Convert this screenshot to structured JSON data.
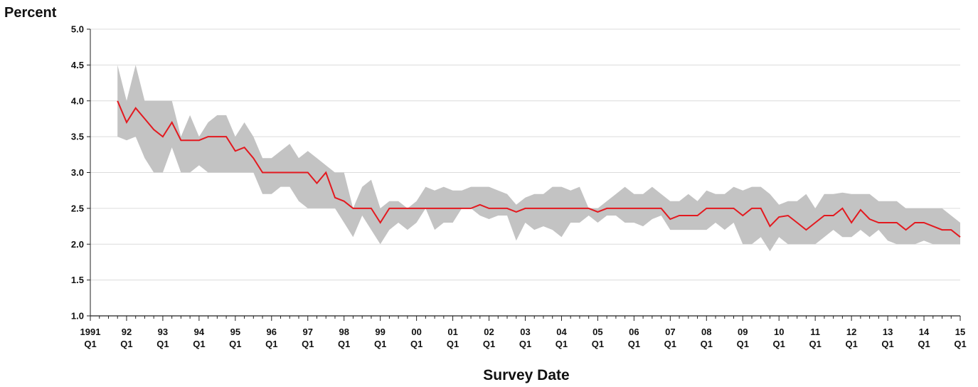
{
  "chart_data": {
    "type": "area",
    "ylabel": "Percent",
    "xlabel": "Survey Date",
    "ylim": [
      1.0,
      5.0
    ],
    "y_ticks": [
      "1.0",
      "1.5",
      "2.0",
      "2.5",
      "3.0",
      "3.5",
      "4.0",
      "4.5",
      "5.0"
    ],
    "x_range": [
      1991.0,
      2015.0
    ],
    "x_ticks": [
      {
        "year": "1991",
        "quarter": "Q1"
      },
      {
        "year": "92",
        "quarter": "Q1"
      },
      {
        "year": "93",
        "quarter": "Q1"
      },
      {
        "year": "94",
        "quarter": "Q1"
      },
      {
        "year": "95",
        "quarter": "Q1"
      },
      {
        "year": "96",
        "quarter": "Q1"
      },
      {
        "year": "97",
        "quarter": "Q1"
      },
      {
        "year": "98",
        "quarter": "Q1"
      },
      {
        "year": "99",
        "quarter": "Q1"
      },
      {
        "year": "00",
        "quarter": "Q1"
      },
      {
        "year": "01",
        "quarter": "Q1"
      },
      {
        "year": "02",
        "quarter": "Q1"
      },
      {
        "year": "03",
        "quarter": "Q1"
      },
      {
        "year": "04",
        "quarter": "Q1"
      },
      {
        "year": "05",
        "quarter": "Q1"
      },
      {
        "year": "06",
        "quarter": "Q1"
      },
      {
        "year": "07",
        "quarter": "Q1"
      },
      {
        "year": "08",
        "quarter": "Q1"
      },
      {
        "year": "09",
        "quarter": "Q1"
      },
      {
        "year": "10",
        "quarter": "Q1"
      },
      {
        "year": "11",
        "quarter": "Q1"
      },
      {
        "year": "12",
        "quarter": "Q1"
      },
      {
        "year": "13",
        "quarter": "Q1"
      },
      {
        "year": "14",
        "quarter": "Q1"
      },
      {
        "year": "15",
        "quarter": "Q1"
      }
    ],
    "grid": true,
    "colors": {
      "median": "#e3191f",
      "range": "#c3c3c3",
      "grid": "#dcdcdc",
      "axis": "#222222"
    },
    "median": [
      [
        1991.75,
        4.0
      ],
      [
        1992.0,
        3.7
      ],
      [
        1992.25,
        3.9
      ],
      [
        1992.5,
        3.75
      ],
      [
        1992.75,
        3.6
      ],
      [
        1993.0,
        3.5
      ],
      [
        1993.25,
        3.7
      ],
      [
        1993.5,
        3.45
      ],
      [
        1993.75,
        3.45
      ],
      [
        1994.0,
        3.45
      ],
      [
        1994.25,
        3.5
      ],
      [
        1994.5,
        3.5
      ],
      [
        1994.75,
        3.5
      ],
      [
        1995.0,
        3.3
      ],
      [
        1995.25,
        3.35
      ],
      [
        1995.5,
        3.2
      ],
      [
        1995.75,
        3.0
      ],
      [
        1996.0,
        3.0
      ],
      [
        1996.25,
        3.0
      ],
      [
        1996.5,
        3.0
      ],
      [
        1996.75,
        3.0
      ],
      [
        1997.0,
        3.0
      ],
      [
        1997.25,
        2.85
      ],
      [
        1997.5,
        3.0
      ],
      [
        1997.75,
        2.65
      ],
      [
        1998.0,
        2.6
      ],
      [
        1998.25,
        2.5
      ],
      [
        1998.5,
        2.5
      ],
      [
        1998.75,
        2.5
      ],
      [
        1999.0,
        2.3
      ],
      [
        1999.25,
        2.5
      ],
      [
        1999.5,
        2.5
      ],
      [
        1999.75,
        2.5
      ],
      [
        2000.0,
        2.5
      ],
      [
        2000.25,
        2.5
      ],
      [
        2000.5,
        2.5
      ],
      [
        2000.75,
        2.5
      ],
      [
        2001.0,
        2.5
      ],
      [
        2001.25,
        2.5
      ],
      [
        2001.5,
        2.5
      ],
      [
        2001.75,
        2.55
      ],
      [
        2002.0,
        2.5
      ],
      [
        2002.25,
        2.5
      ],
      [
        2002.5,
        2.5
      ],
      [
        2002.75,
        2.45
      ],
      [
        2003.0,
        2.5
      ],
      [
        2003.25,
        2.5
      ],
      [
        2003.5,
        2.5
      ],
      [
        2003.75,
        2.5
      ],
      [
        2004.0,
        2.5
      ],
      [
        2004.25,
        2.5
      ],
      [
        2004.5,
        2.5
      ],
      [
        2004.75,
        2.5
      ],
      [
        2005.0,
        2.45
      ],
      [
        2005.25,
        2.5
      ],
      [
        2005.5,
        2.5
      ],
      [
        2005.75,
        2.5
      ],
      [
        2006.0,
        2.5
      ],
      [
        2006.25,
        2.5
      ],
      [
        2006.5,
        2.5
      ],
      [
        2006.75,
        2.5
      ],
      [
        2007.0,
        2.35
      ],
      [
        2007.25,
        2.4
      ],
      [
        2007.5,
        2.4
      ],
      [
        2007.75,
        2.4
      ],
      [
        2008.0,
        2.5
      ],
      [
        2008.25,
        2.5
      ],
      [
        2008.5,
        2.5
      ],
      [
        2008.75,
        2.5
      ],
      [
        2009.0,
        2.4
      ],
      [
        2009.25,
        2.5
      ],
      [
        2009.5,
        2.5
      ],
      [
        2009.75,
        2.25
      ],
      [
        2010.0,
        2.38
      ],
      [
        2010.25,
        2.4
      ],
      [
        2010.5,
        2.3
      ],
      [
        2010.75,
        2.2
      ],
      [
        2011.0,
        2.3
      ],
      [
        2011.25,
        2.4
      ],
      [
        2011.5,
        2.4
      ],
      [
        2011.75,
        2.5
      ],
      [
        2012.0,
        2.3
      ],
      [
        2012.25,
        2.48
      ],
      [
        2012.5,
        2.35
      ],
      [
        2012.75,
        2.3
      ],
      [
        2013.0,
        2.3
      ],
      [
        2013.25,
        2.3
      ],
      [
        2013.5,
        2.2
      ],
      [
        2013.75,
        2.3
      ],
      [
        2014.0,
        2.3
      ],
      [
        2014.25,
        2.25
      ],
      [
        2014.5,
        2.2
      ],
      [
        2014.75,
        2.2
      ],
      [
        2015.0,
        2.1
      ]
    ],
    "range_upper": [
      [
        1991.75,
        4.5
      ],
      [
        1992.0,
        4.0
      ],
      [
        1992.25,
        4.5
      ],
      [
        1992.5,
        4.0
      ],
      [
        1992.75,
        4.0
      ],
      [
        1993.0,
        4.0
      ],
      [
        1993.25,
        4.0
      ],
      [
        1993.5,
        3.5
      ],
      [
        1993.75,
        3.8
      ],
      [
        1994.0,
        3.5
      ],
      [
        1994.25,
        3.7
      ],
      [
        1994.5,
        3.8
      ],
      [
        1994.75,
        3.8
      ],
      [
        1995.0,
        3.5
      ],
      [
        1995.25,
        3.7
      ],
      [
        1995.5,
        3.5
      ],
      [
        1995.75,
        3.2
      ],
      [
        1996.0,
        3.2
      ],
      [
        1996.25,
        3.3
      ],
      [
        1996.5,
        3.4
      ],
      [
        1996.75,
        3.2
      ],
      [
        1997.0,
        3.3
      ],
      [
        1997.25,
        3.2
      ],
      [
        1997.5,
        3.1
      ],
      [
        1997.75,
        3.0
      ],
      [
        1998.0,
        3.0
      ],
      [
        1998.25,
        2.5
      ],
      [
        1998.5,
        2.8
      ],
      [
        1998.75,
        2.9
      ],
      [
        1999.0,
        2.5
      ],
      [
        1999.25,
        2.6
      ],
      [
        1999.5,
        2.6
      ],
      [
        1999.75,
        2.5
      ],
      [
        2000.0,
        2.6
      ],
      [
        2000.25,
        2.8
      ],
      [
        2000.5,
        2.75
      ],
      [
        2000.75,
        2.8
      ],
      [
        2001.0,
        2.75
      ],
      [
        2001.25,
        2.75
      ],
      [
        2001.5,
        2.8
      ],
      [
        2001.75,
        2.8
      ],
      [
        2002.0,
        2.8
      ],
      [
        2002.25,
        2.75
      ],
      [
        2002.5,
        2.7
      ],
      [
        2002.75,
        2.55
      ],
      [
        2003.0,
        2.65
      ],
      [
        2003.25,
        2.7
      ],
      [
        2003.5,
        2.7
      ],
      [
        2003.75,
        2.8
      ],
      [
        2004.0,
        2.8
      ],
      [
        2004.25,
        2.75
      ],
      [
        2004.5,
        2.8
      ],
      [
        2004.75,
        2.5
      ],
      [
        2005.0,
        2.5
      ],
      [
        2005.25,
        2.6
      ],
      [
        2005.5,
        2.7
      ],
      [
        2005.75,
        2.8
      ],
      [
        2006.0,
        2.7
      ],
      [
        2006.25,
        2.7
      ],
      [
        2006.5,
        2.8
      ],
      [
        2006.75,
        2.7
      ],
      [
        2007.0,
        2.6
      ],
      [
        2007.25,
        2.6
      ],
      [
        2007.5,
        2.7
      ],
      [
        2007.75,
        2.6
      ],
      [
        2008.0,
        2.75
      ],
      [
        2008.25,
        2.7
      ],
      [
        2008.5,
        2.7
      ],
      [
        2008.75,
        2.8
      ],
      [
        2009.0,
        2.75
      ],
      [
        2009.25,
        2.8
      ],
      [
        2009.5,
        2.8
      ],
      [
        2009.75,
        2.7
      ],
      [
        2010.0,
        2.55
      ],
      [
        2010.25,
        2.6
      ],
      [
        2010.5,
        2.6
      ],
      [
        2010.75,
        2.7
      ],
      [
        2011.0,
        2.5
      ],
      [
        2011.25,
        2.7
      ],
      [
        2011.5,
        2.7
      ],
      [
        2011.75,
        2.72
      ],
      [
        2012.0,
        2.7
      ],
      [
        2012.25,
        2.7
      ],
      [
        2012.5,
        2.7
      ],
      [
        2012.75,
        2.6
      ],
      [
        2013.0,
        2.6
      ],
      [
        2013.25,
        2.6
      ],
      [
        2013.5,
        2.5
      ],
      [
        2013.75,
        2.5
      ],
      [
        2014.0,
        2.5
      ],
      [
        2014.25,
        2.5
      ],
      [
        2014.5,
        2.5
      ],
      [
        2014.75,
        2.4
      ],
      [
        2015.0,
        2.3
      ]
    ],
    "range_lower": [
      [
        1991.75,
        3.5
      ],
      [
        1992.0,
        3.45
      ],
      [
        1992.25,
        3.5
      ],
      [
        1992.5,
        3.2
      ],
      [
        1992.75,
        3.0
      ],
      [
        1993.0,
        3.0
      ],
      [
        1993.25,
        3.35
      ],
      [
        1993.5,
        3.0
      ],
      [
        1993.75,
        3.0
      ],
      [
        1994.0,
        3.1
      ],
      [
        1994.25,
        3.0
      ],
      [
        1994.5,
        3.0
      ],
      [
        1994.75,
        3.0
      ],
      [
        1995.0,
        3.0
      ],
      [
        1995.25,
        3.0
      ],
      [
        1995.5,
        3.0
      ],
      [
        1995.75,
        2.7
      ],
      [
        1996.0,
        2.7
      ],
      [
        1996.25,
        2.8
      ],
      [
        1996.5,
        2.8
      ],
      [
        1996.75,
        2.6
      ],
      [
        1997.0,
        2.5
      ],
      [
        1997.25,
        2.5
      ],
      [
        1997.5,
        2.5
      ],
      [
        1997.75,
        2.5
      ],
      [
        1998.0,
        2.3
      ],
      [
        1998.25,
        2.1
      ],
      [
        1998.5,
        2.4
      ],
      [
        1998.75,
        2.2
      ],
      [
        1999.0,
        2.0
      ],
      [
        1999.25,
        2.2
      ],
      [
        1999.5,
        2.3
      ],
      [
        1999.75,
        2.2
      ],
      [
        2000.0,
        2.3
      ],
      [
        2000.25,
        2.5
      ],
      [
        2000.5,
        2.2
      ],
      [
        2000.75,
        2.3
      ],
      [
        2001.0,
        2.3
      ],
      [
        2001.25,
        2.5
      ],
      [
        2001.5,
        2.5
      ],
      [
        2001.75,
        2.4
      ],
      [
        2002.0,
        2.35
      ],
      [
        2002.25,
        2.4
      ],
      [
        2002.5,
        2.4
      ],
      [
        2002.75,
        2.05
      ],
      [
        2003.0,
        2.3
      ],
      [
        2003.25,
        2.2
      ],
      [
        2003.5,
        2.25
      ],
      [
        2003.75,
        2.2
      ],
      [
        2004.0,
        2.1
      ],
      [
        2004.25,
        2.3
      ],
      [
        2004.5,
        2.3
      ],
      [
        2004.75,
        2.4
      ],
      [
        2005.0,
        2.3
      ],
      [
        2005.25,
        2.4
      ],
      [
        2005.5,
        2.4
      ],
      [
        2005.75,
        2.3
      ],
      [
        2006.0,
        2.3
      ],
      [
        2006.25,
        2.25
      ],
      [
        2006.5,
        2.35
      ],
      [
        2006.75,
        2.4
      ],
      [
        2007.0,
        2.2
      ],
      [
        2007.25,
        2.2
      ],
      [
        2007.5,
        2.2
      ],
      [
        2007.75,
        2.2
      ],
      [
        2008.0,
        2.2
      ],
      [
        2008.25,
        2.3
      ],
      [
        2008.5,
        2.2
      ],
      [
        2008.75,
        2.3
      ],
      [
        2009.0,
        2.0
      ],
      [
        2009.25,
        2.0
      ],
      [
        2009.5,
        2.1
      ],
      [
        2009.75,
        1.9
      ],
      [
        2010.0,
        2.1
      ],
      [
        2010.25,
        2.0
      ],
      [
        2010.5,
        2.0
      ],
      [
        2010.75,
        2.0
      ],
      [
        2011.0,
        2.0
      ],
      [
        2011.25,
        2.1
      ],
      [
        2011.5,
        2.2
      ],
      [
        2011.75,
        2.1
      ],
      [
        2012.0,
        2.1
      ],
      [
        2012.25,
        2.2
      ],
      [
        2012.5,
        2.1
      ],
      [
        2012.75,
        2.2
      ],
      [
        2013.0,
        2.05
      ],
      [
        2013.25,
        2.0
      ],
      [
        2013.5,
        2.0
      ],
      [
        2013.75,
        2.0
      ],
      [
        2014.0,
        2.05
      ],
      [
        2014.25,
        2.0
      ],
      [
        2014.5,
        2.0
      ],
      [
        2014.75,
        2.0
      ],
      [
        2015.0,
        2.0
      ]
    ]
  }
}
